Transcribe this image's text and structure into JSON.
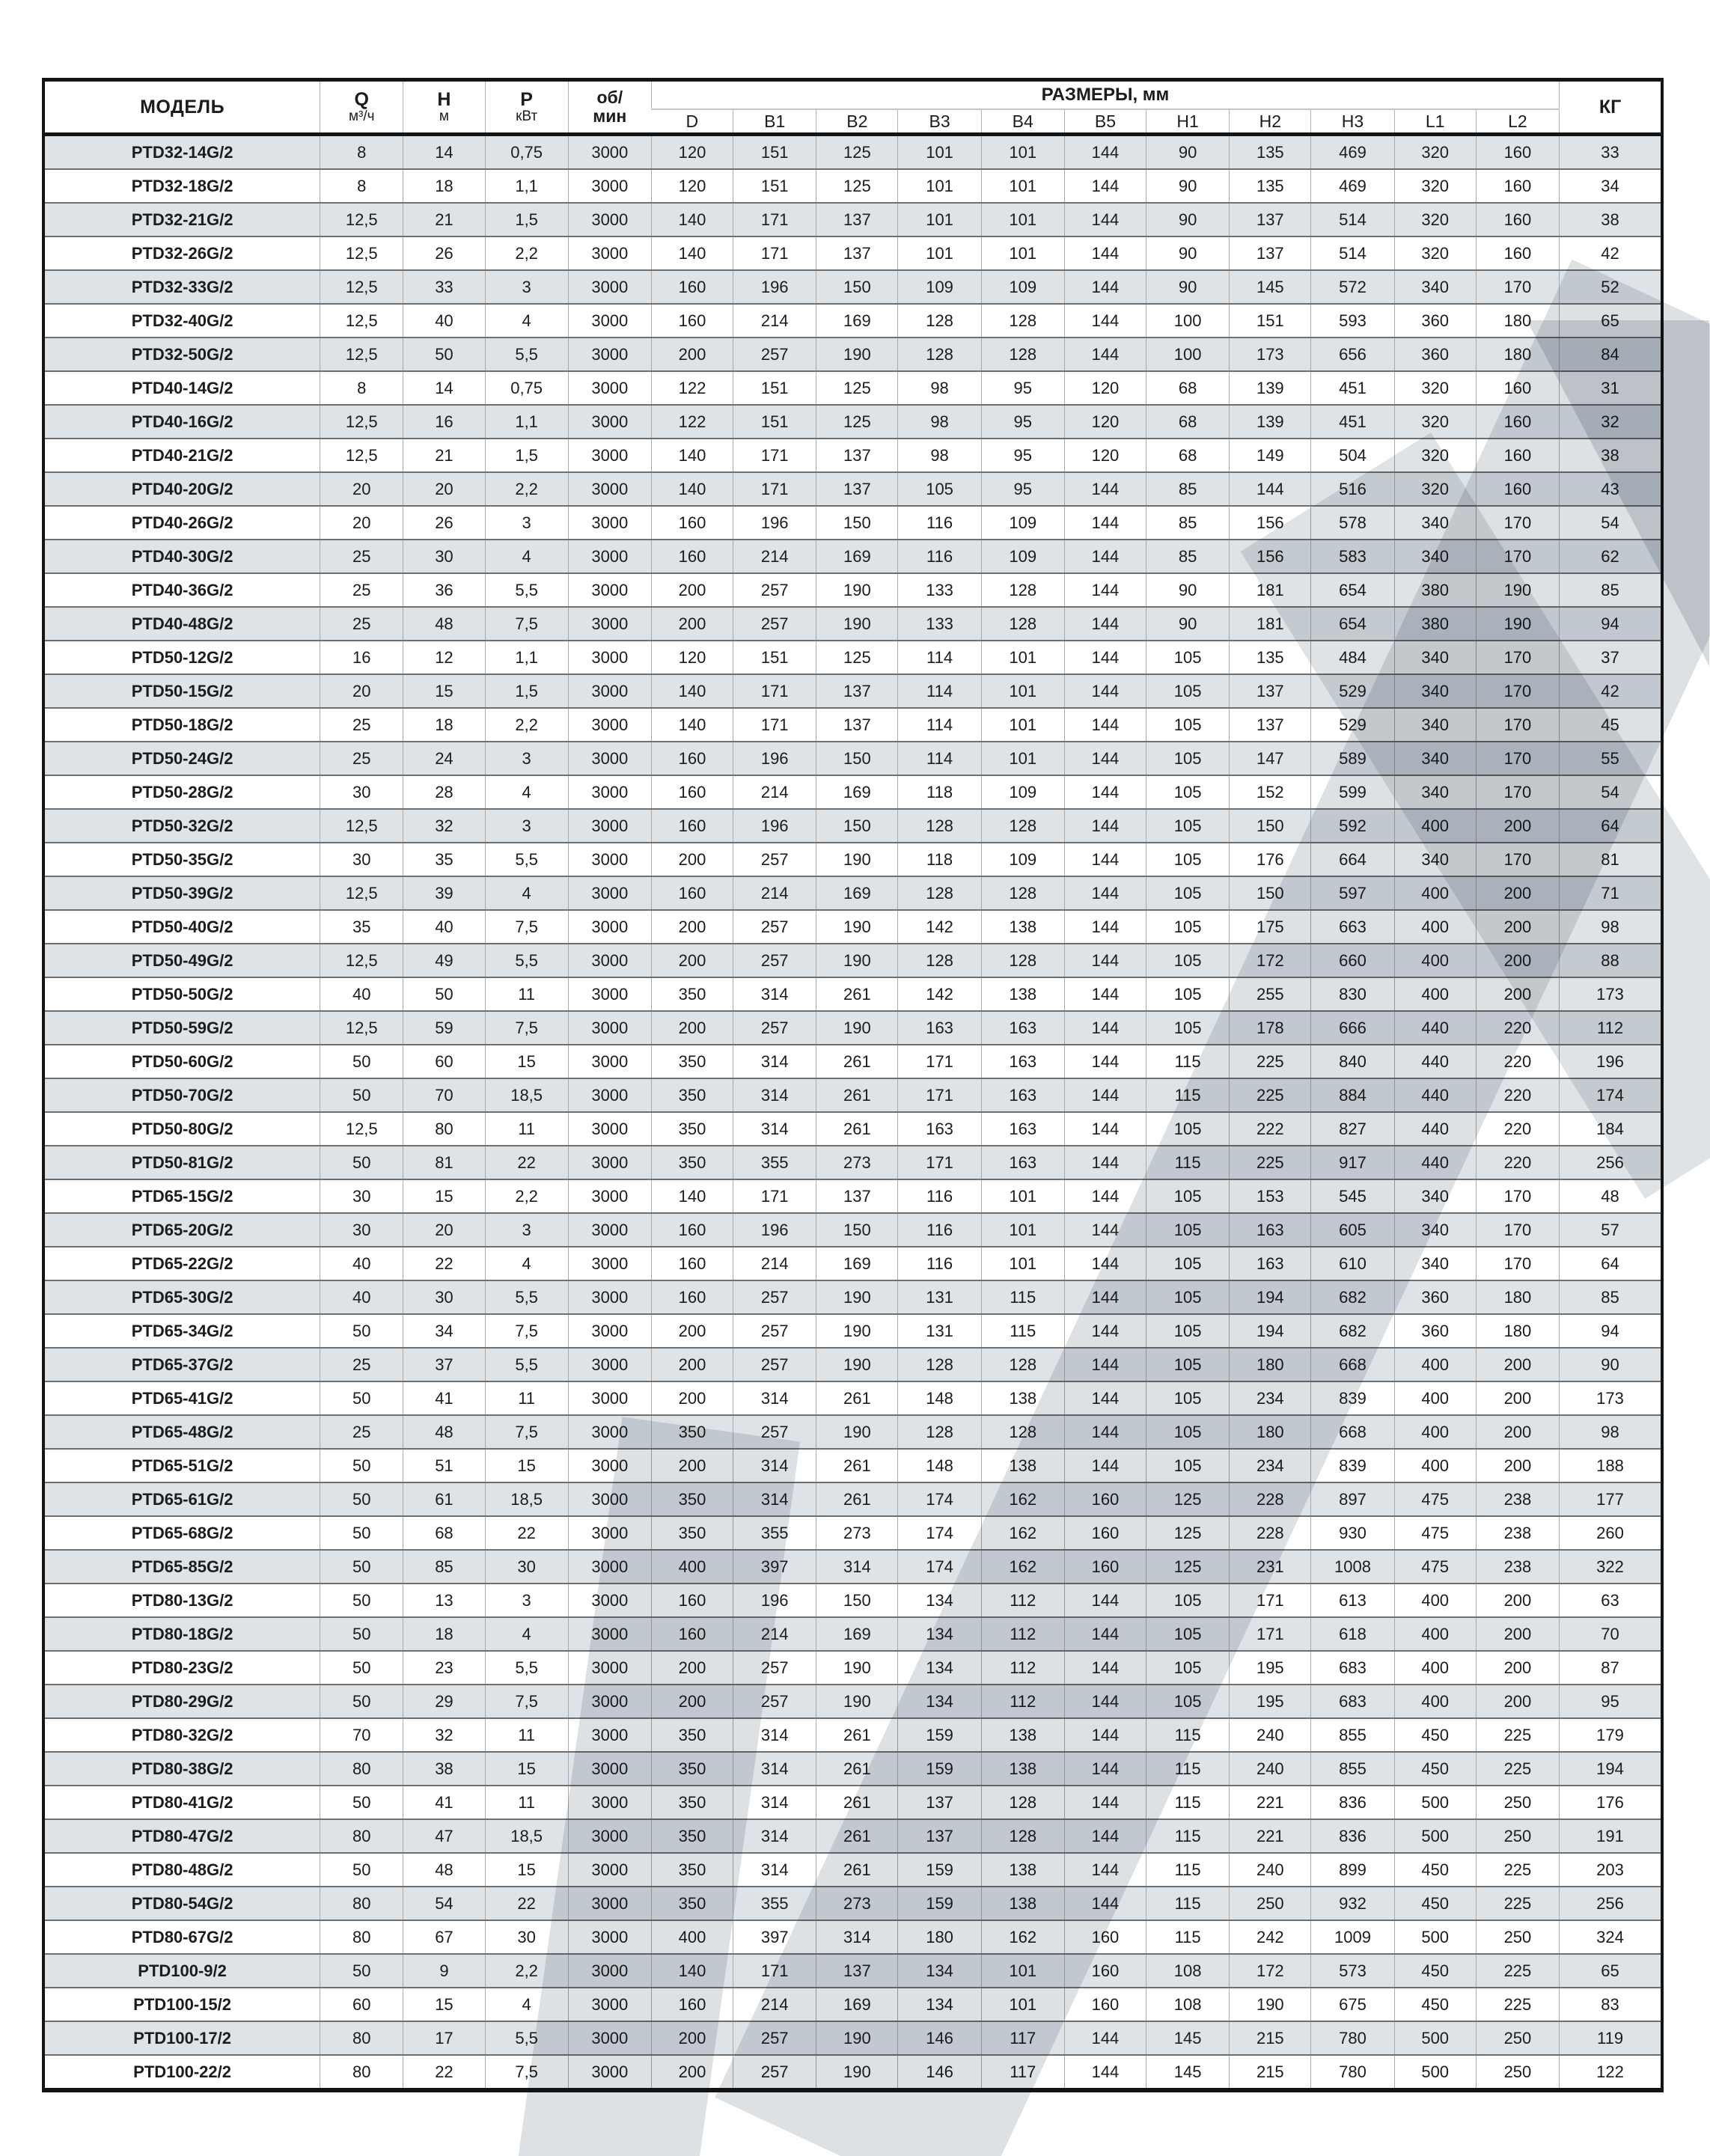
{
  "table": {
    "header": {
      "model": "МОДЕЛЬ",
      "flow": {
        "label": "Q",
        "unit": "м³/ч"
      },
      "head": {
        "label": "Н",
        "unit": "м"
      },
      "power": {
        "label": "Р",
        "unit": "кВт"
      },
      "speed": {
        "line1": "об/",
        "line2": "мин"
      },
      "dimensions_group": "РАЗМЕРЫ, мм",
      "dimension_columns": [
        "D",
        "B1",
        "B2",
        "B3",
        "B4",
        "B5",
        "H1",
        "H2",
        "H3",
        "L1",
        "L2"
      ],
      "weight": "КГ"
    },
    "colors": {
      "stripe": "#dee3e8",
      "grid": "#a9a9a9",
      "frame": "#141414",
      "row_divider": "#6f6f6f",
      "watermark": "#d8dcdf"
    },
    "rows": [
      [
        "PTD32-14G/2",
        "8",
        "14",
        "0,75",
        "3000",
        "120",
        "151",
        "125",
        "101",
        "101",
        "144",
        "90",
        "135",
        "469",
        "320",
        "160",
        "33"
      ],
      [
        "PTD32-18G/2",
        "8",
        "18",
        "1,1",
        "3000",
        "120",
        "151",
        "125",
        "101",
        "101",
        "144",
        "90",
        "135",
        "469",
        "320",
        "160",
        "34"
      ],
      [
        "PTD32-21G/2",
        "12,5",
        "21",
        "1,5",
        "3000",
        "140",
        "171",
        "137",
        "101",
        "101",
        "144",
        "90",
        "137",
        "514",
        "320",
        "160",
        "38"
      ],
      [
        "PTD32-26G/2",
        "12,5",
        "26",
        "2,2",
        "3000",
        "140",
        "171",
        "137",
        "101",
        "101",
        "144",
        "90",
        "137",
        "514",
        "320",
        "160",
        "42"
      ],
      [
        "PTD32-33G/2",
        "12,5",
        "33",
        "3",
        "3000",
        "160",
        "196",
        "150",
        "109",
        "109",
        "144",
        "90",
        "145",
        "572",
        "340",
        "170",
        "52"
      ],
      [
        "PTD32-40G/2",
        "12,5",
        "40",
        "4",
        "3000",
        "160",
        "214",
        "169",
        "128",
        "128",
        "144",
        "100",
        "151",
        "593",
        "360",
        "180",
        "65"
      ],
      [
        "PTD32-50G/2",
        "12,5",
        "50",
        "5,5",
        "3000",
        "200",
        "257",
        "190",
        "128",
        "128",
        "144",
        "100",
        "173",
        "656",
        "360",
        "180",
        "84"
      ],
      [
        "PTD40-14G/2",
        "8",
        "14",
        "0,75",
        "3000",
        "122",
        "151",
        "125",
        "98",
        "95",
        "120",
        "68",
        "139",
        "451",
        "320",
        "160",
        "31"
      ],
      [
        "PTD40-16G/2",
        "12,5",
        "16",
        "1,1",
        "3000",
        "122",
        "151",
        "125",
        "98",
        "95",
        "120",
        "68",
        "139",
        "451",
        "320",
        "160",
        "32"
      ],
      [
        "PTD40-21G/2",
        "12,5",
        "21",
        "1,5",
        "3000",
        "140",
        "171",
        "137",
        "98",
        "95",
        "120",
        "68",
        "149",
        "504",
        "320",
        "160",
        "38"
      ],
      [
        "PTD40-20G/2",
        "20",
        "20",
        "2,2",
        "3000",
        "140",
        "171",
        "137",
        "105",
        "95",
        "144",
        "85",
        "144",
        "516",
        "320",
        "160",
        "43"
      ],
      [
        "PTD40-26G/2",
        "20",
        "26",
        "3",
        "3000",
        "160",
        "196",
        "150",
        "116",
        "109",
        "144",
        "85",
        "156",
        "578",
        "340",
        "170",
        "54"
      ],
      [
        "PTD40-30G/2",
        "25",
        "30",
        "4",
        "3000",
        "160",
        "214",
        "169",
        "116",
        "109",
        "144",
        "85",
        "156",
        "583",
        "340",
        "170",
        "62"
      ],
      [
        "PTD40-36G/2",
        "25",
        "36",
        "5,5",
        "3000",
        "200",
        "257",
        "190",
        "133",
        "128",
        "144",
        "90",
        "181",
        "654",
        "380",
        "190",
        "85"
      ],
      [
        "PTD40-48G/2",
        "25",
        "48",
        "7,5",
        "3000",
        "200",
        "257",
        "190",
        "133",
        "128",
        "144",
        "90",
        "181",
        "654",
        "380",
        "190",
        "94"
      ],
      [
        "PTD50-12G/2",
        "16",
        "12",
        "1,1",
        "3000",
        "120",
        "151",
        "125",
        "114",
        "101",
        "144",
        "105",
        "135",
        "484",
        "340",
        "170",
        "37"
      ],
      [
        "PTD50-15G/2",
        "20",
        "15",
        "1,5",
        "3000",
        "140",
        "171",
        "137",
        "114",
        "101",
        "144",
        "105",
        "137",
        "529",
        "340",
        "170",
        "42"
      ],
      [
        "PTD50-18G/2",
        "25",
        "18",
        "2,2",
        "3000",
        "140",
        "171",
        "137",
        "114",
        "101",
        "144",
        "105",
        "137",
        "529",
        "340",
        "170",
        "45"
      ],
      [
        "PTD50-24G/2",
        "25",
        "24",
        "3",
        "3000",
        "160",
        "196",
        "150",
        "114",
        "101",
        "144",
        "105",
        "147",
        "589",
        "340",
        "170",
        "55"
      ],
      [
        "PTD50-28G/2",
        "30",
        "28",
        "4",
        "3000",
        "160",
        "214",
        "169",
        "118",
        "109",
        "144",
        "105",
        "152",
        "599",
        "340",
        "170",
        "54"
      ],
      [
        "PTD50-32G/2",
        "12,5",
        "32",
        "3",
        "3000",
        "160",
        "196",
        "150",
        "128",
        "128",
        "144",
        "105",
        "150",
        "592",
        "400",
        "200",
        "64"
      ],
      [
        "PTD50-35G/2",
        "30",
        "35",
        "5,5",
        "3000",
        "200",
        "257",
        "190",
        "118",
        "109",
        "144",
        "105",
        "176",
        "664",
        "340",
        "170",
        "81"
      ],
      [
        "PTD50-39G/2",
        "12,5",
        "39",
        "4",
        "3000",
        "160",
        "214",
        "169",
        "128",
        "128",
        "144",
        "105",
        "150",
        "597",
        "400",
        "200",
        "71"
      ],
      [
        "PTD50-40G/2",
        "35",
        "40",
        "7,5",
        "3000",
        "200",
        "257",
        "190",
        "142",
        "138",
        "144",
        "105",
        "175",
        "663",
        "400",
        "200",
        "98"
      ],
      [
        "PTD50-49G/2",
        "12,5",
        "49",
        "5,5",
        "3000",
        "200",
        "257",
        "190",
        "128",
        "128",
        "144",
        "105",
        "172",
        "660",
        "400",
        "200",
        "88"
      ],
      [
        "PTD50-50G/2",
        "40",
        "50",
        "11",
        "3000",
        "350",
        "314",
        "261",
        "142",
        "138",
        "144",
        "105",
        "255",
        "830",
        "400",
        "200",
        "173"
      ],
      [
        "PTD50-59G/2",
        "12,5",
        "59",
        "7,5",
        "3000",
        "200",
        "257",
        "190",
        "163",
        "163",
        "144",
        "105",
        "178",
        "666",
        "440",
        "220",
        "112"
      ],
      [
        "PTD50-60G/2",
        "50",
        "60",
        "15",
        "3000",
        "350",
        "314",
        "261",
        "171",
        "163",
        "144",
        "115",
        "225",
        "840",
        "440",
        "220",
        "196"
      ],
      [
        "PTD50-70G/2",
        "50",
        "70",
        "18,5",
        "3000",
        "350",
        "314",
        "261",
        "171",
        "163",
        "144",
        "115",
        "225",
        "884",
        "440",
        "220",
        "174"
      ],
      [
        "PTD50-80G/2",
        "12,5",
        "80",
        "11",
        "3000",
        "350",
        "314",
        "261",
        "163",
        "163",
        "144",
        "105",
        "222",
        "827",
        "440",
        "220",
        "184"
      ],
      [
        "PTD50-81G/2",
        "50",
        "81",
        "22",
        "3000",
        "350",
        "355",
        "273",
        "171",
        "163",
        "144",
        "115",
        "225",
        "917",
        "440",
        "220",
        "256"
      ],
      [
        "PTD65-15G/2",
        "30",
        "15",
        "2,2",
        "3000",
        "140",
        "171",
        "137",
        "116",
        "101",
        "144",
        "105",
        "153",
        "545",
        "340",
        "170",
        "48"
      ],
      [
        "PTD65-20G/2",
        "30",
        "20",
        "3",
        "3000",
        "160",
        "196",
        "150",
        "116",
        "101",
        "144",
        "105",
        "163",
        "605",
        "340",
        "170",
        "57"
      ],
      [
        "PTD65-22G/2",
        "40",
        "22",
        "4",
        "3000",
        "160",
        "214",
        "169",
        "116",
        "101",
        "144",
        "105",
        "163",
        "610",
        "340",
        "170",
        "64"
      ],
      [
        "PTD65-30G/2",
        "40",
        "30",
        "5,5",
        "3000",
        "160",
        "257",
        "190",
        "131",
        "115",
        "144",
        "105",
        "194",
        "682",
        "360",
        "180",
        "85"
      ],
      [
        "PTD65-34G/2",
        "50",
        "34",
        "7,5",
        "3000",
        "200",
        "257",
        "190",
        "131",
        "115",
        "144",
        "105",
        "194",
        "682",
        "360",
        "180",
        "94"
      ],
      [
        "PTD65-37G/2",
        "25",
        "37",
        "5,5",
        "3000",
        "200",
        "257",
        "190",
        "128",
        "128",
        "144",
        "105",
        "180",
        "668",
        "400",
        "200",
        "90"
      ],
      [
        "PTD65-41G/2",
        "50",
        "41",
        "11",
        "3000",
        "200",
        "314",
        "261",
        "148",
        "138",
        "144",
        "105",
        "234",
        "839",
        "400",
        "200",
        "173"
      ],
      [
        "PTD65-48G/2",
        "25",
        "48",
        "7,5",
        "3000",
        "350",
        "257",
        "190",
        "128",
        "128",
        "144",
        "105",
        "180",
        "668",
        "400",
        "200",
        "98"
      ],
      [
        "PTD65-51G/2",
        "50",
        "51",
        "15",
        "3000",
        "200",
        "314",
        "261",
        "148",
        "138",
        "144",
        "105",
        "234",
        "839",
        "400",
        "200",
        "188"
      ],
      [
        "PTD65-61G/2",
        "50",
        "61",
        "18,5",
        "3000",
        "350",
        "314",
        "261",
        "174",
        "162",
        "160",
        "125",
        "228",
        "897",
        "475",
        "238",
        "177"
      ],
      [
        "PTD65-68G/2",
        "50",
        "68",
        "22",
        "3000",
        "350",
        "355",
        "273",
        "174",
        "162",
        "160",
        "125",
        "228",
        "930",
        "475",
        "238",
        "260"
      ],
      [
        "PTD65-85G/2",
        "50",
        "85",
        "30",
        "3000",
        "400",
        "397",
        "314",
        "174",
        "162",
        "160",
        "125",
        "231",
        "1008",
        "475",
        "238",
        "322"
      ],
      [
        "PTD80-13G/2",
        "50",
        "13",
        "3",
        "3000",
        "160",
        "196",
        "150",
        "134",
        "112",
        "144",
        "105",
        "171",
        "613",
        "400",
        "200",
        "63"
      ],
      [
        "PTD80-18G/2",
        "50",
        "18",
        "4",
        "3000",
        "160",
        "214",
        "169",
        "134",
        "112",
        "144",
        "105",
        "171",
        "618",
        "400",
        "200",
        "70"
      ],
      [
        "PTD80-23G/2",
        "50",
        "23",
        "5,5",
        "3000",
        "200",
        "257",
        "190",
        "134",
        "112",
        "144",
        "105",
        "195",
        "683",
        "400",
        "200",
        "87"
      ],
      [
        "PTD80-29G/2",
        "50",
        "29",
        "7,5",
        "3000",
        "200",
        "257",
        "190",
        "134",
        "112",
        "144",
        "105",
        "195",
        "683",
        "400",
        "200",
        "95"
      ],
      [
        "PTD80-32G/2",
        "70",
        "32",
        "11",
        "3000",
        "350",
        "314",
        "261",
        "159",
        "138",
        "144",
        "115",
        "240",
        "855",
        "450",
        "225",
        "179"
      ],
      [
        "PTD80-38G/2",
        "80",
        "38",
        "15",
        "3000",
        "350",
        "314",
        "261",
        "159",
        "138",
        "144",
        "115",
        "240",
        "855",
        "450",
        "225",
        "194"
      ],
      [
        "PTD80-41G/2",
        "50",
        "41",
        "11",
        "3000",
        "350",
        "314",
        "261",
        "137",
        "128",
        "144",
        "115",
        "221",
        "836",
        "500",
        "250",
        "176"
      ],
      [
        "PTD80-47G/2",
        "80",
        "47",
        "18,5",
        "3000",
        "350",
        "314",
        "261",
        "137",
        "128",
        "144",
        "115",
        "221",
        "836",
        "500",
        "250",
        "191"
      ],
      [
        "PTD80-48G/2",
        "50",
        "48",
        "15",
        "3000",
        "350",
        "314",
        "261",
        "159",
        "138",
        "144",
        "115",
        "240",
        "899",
        "450",
        "225",
        "203"
      ],
      [
        "PTD80-54G/2",
        "80",
        "54",
        "22",
        "3000",
        "350",
        "355",
        "273",
        "159",
        "138",
        "144",
        "115",
        "250",
        "932",
        "450",
        "225",
        "256"
      ],
      [
        "PTD80-67G/2",
        "80",
        "67",
        "30",
        "3000",
        "400",
        "397",
        "314",
        "180",
        "162",
        "160",
        "115",
        "242",
        "1009",
        "500",
        "250",
        "324"
      ],
      [
        "PTD100-9/2",
        "50",
        "9",
        "2,2",
        "3000",
        "140",
        "171",
        "137",
        "134",
        "101",
        "160",
        "108",
        "172",
        "573",
        "450",
        "225",
        "65"
      ],
      [
        "PTD100-15/2",
        "60",
        "15",
        "4",
        "3000",
        "160",
        "214",
        "169",
        "134",
        "101",
        "160",
        "108",
        "190",
        "675",
        "450",
        "225",
        "83"
      ],
      [
        "PTD100-17/2",
        "80",
        "17",
        "5,5",
        "3000",
        "200",
        "257",
        "190",
        "146",
        "117",
        "144",
        "145",
        "215",
        "780",
        "500",
        "250",
        "119"
      ],
      [
        "PTD100-22/2",
        "80",
        "22",
        "7,5",
        "3000",
        "200",
        "257",
        "190",
        "146",
        "117",
        "144",
        "145",
        "215",
        "780",
        "500",
        "250",
        "122"
      ]
    ]
  }
}
